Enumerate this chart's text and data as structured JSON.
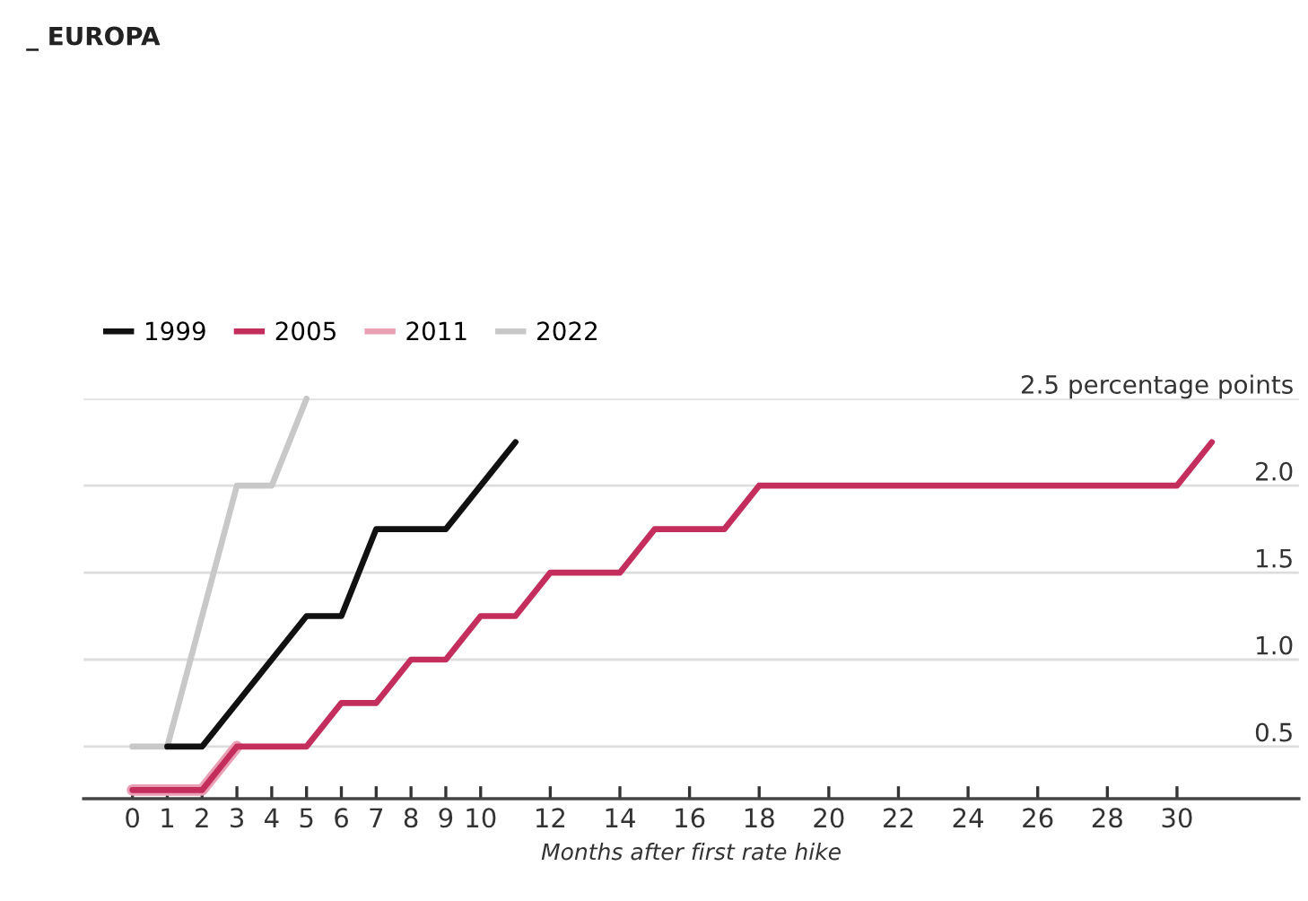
{
  "chart_data": {
    "type": "line",
    "title": "_ EUROPA",
    "xlabel": "Months after first rate hike",
    "xlim": [
      -1.4,
      33.5
    ],
    "ylim": [
      0.2,
      2.5
    ],
    "xticks": [
      0,
      1,
      2,
      3,
      4,
      5,
      6,
      7,
      8,
      9,
      10,
      12,
      14,
      16,
      18,
      20,
      22,
      24,
      26,
      28,
      30
    ],
    "yticks": [
      0.5,
      {
        "value": 1.0,
        "label": "1.0"
      },
      1.5,
      {
        "value": 2.0,
        "label": "2.0"
      },
      {
        "value": 2.5,
        "label": "2.5 percentage points"
      }
    ],
    "grid": "y",
    "legend": "top left",
    "marker": "none",
    "line_style": "solid",
    "series": [
      {
        "name": "1999",
        "color": "#111111",
        "x": [
          1,
          2,
          5,
          6,
          7,
          9,
          11
        ],
        "values": [
          0.5,
          0.5,
          1.25,
          1.25,
          1.75,
          1.75,
          2.25
        ]
      },
      {
        "name": "2005",
        "color": "#c42e5c",
        "x": [
          0,
          2,
          3,
          5,
          6,
          7,
          8,
          9,
          10,
          11,
          12,
          14,
          15,
          17,
          18,
          30,
          31
        ],
        "values": [
          0.25,
          0.25,
          0.5,
          0.5,
          0.75,
          0.75,
          1.0,
          1.0,
          1.25,
          1.25,
          1.5,
          1.5,
          1.75,
          1.75,
          2.0,
          2.0,
          2.25
        ]
      },
      {
        "name": "2011",
        "color": "#e9a0b4",
        "x": [
          0,
          2,
          3
        ],
        "values": [
          0.25,
          0.25,
          0.5
        ]
      },
      {
        "name": "2022",
        "color": "#c8c8c8",
        "x": [
          0,
          1,
          3,
          4,
          5
        ],
        "values": [
          0.5,
          0.5,
          2.0,
          2.0,
          2.5
        ]
      }
    ]
  }
}
